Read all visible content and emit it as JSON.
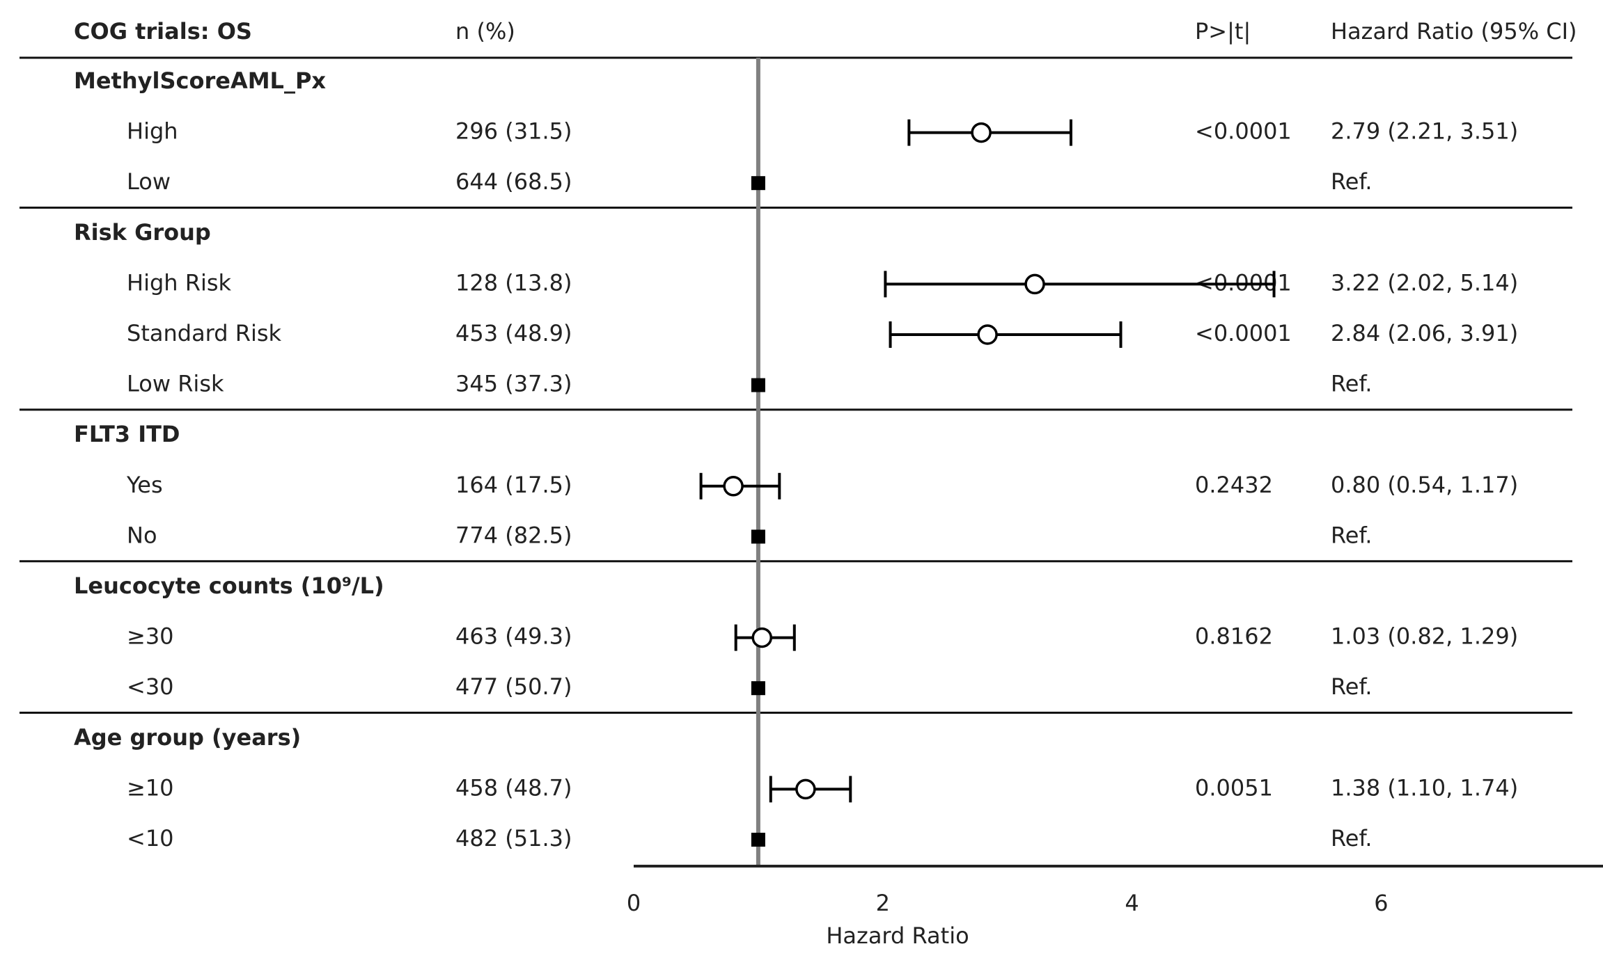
{
  "chart_data": {
    "type": "forest",
    "title": "COG trials: OS",
    "columns": {
      "n": "n (%)",
      "p": "P>|t|",
      "hr": "Hazard Ratio (95% CI)"
    },
    "xlabel": "Hazard Ratio",
    "xlim": [
      0,
      8.5
    ],
    "xticks": [
      "0",
      "2",
      "4",
      "6",
      "8"
    ],
    "reference_line": 1,
    "grid": false,
    "groups": [
      {
        "name": "MethylScoreAML_Px",
        "rows": [
          {
            "label": "High",
            "n": "296 (31.5)",
            "p": "<0.0001",
            "hr_text": "2.79 (2.21, 3.51)",
            "hr": 2.79,
            "lo": 2.21,
            "hi": 3.51
          },
          {
            "label": "Low",
            "n": "644 (68.5)",
            "p": "",
            "hr_text": "Ref.",
            "hr": 1,
            "ref": true
          }
        ]
      },
      {
        "name": "Risk Group",
        "rows": [
          {
            "label": "High Risk",
            "n": "128 (13.8)",
            "p": "<0.0001",
            "hr_text": "3.22 (2.02, 5.14)",
            "hr": 3.22,
            "lo": 2.02,
            "hi": 5.14
          },
          {
            "label": "Standard Risk",
            "n": "453 (48.9)",
            "p": "<0.0001",
            "hr_text": "2.84 (2.06, 3.91)",
            "hr": 2.84,
            "lo": 2.06,
            "hi": 3.91
          },
          {
            "label": "Low Risk",
            "n": "345 (37.3)",
            "p": "",
            "hr_text": "Ref.",
            "hr": 1,
            "ref": true
          }
        ]
      },
      {
        "name": "FLT3 ITD",
        "rows": [
          {
            "label": "Yes",
            "n": "164 (17.5)",
            "p": "0.2432",
            "hr_text": "0.80 (0.54, 1.17)",
            "hr": 0.8,
            "lo": 0.54,
            "hi": 1.17
          },
          {
            "label": "No",
            "n": "774 (82.5)",
            "p": "",
            "hr_text": "Ref.",
            "hr": 1,
            "ref": true
          }
        ]
      },
      {
        "name": "Leucocyte counts (10⁹/L)",
        "rows": [
          {
            "label": "≥30",
            "n": "463 (49.3)",
            "p": "0.8162",
            "hr_text": "1.03 (0.82, 1.29)",
            "hr": 1.03,
            "lo": 0.82,
            "hi": 1.29
          },
          {
            "label": "<30",
            "n": "477 (50.7)",
            "p": "",
            "hr_text": "Ref.",
            "hr": 1,
            "ref": true
          }
        ]
      },
      {
        "name": "Age group (years)",
        "rows": [
          {
            "label": "≥10",
            "n": "458 (48.7)",
            "p": "0.0051",
            "hr_text": "1.38 (1.10, 1.74)",
            "hr": 1.38,
            "lo": 1.1,
            "hi": 1.74
          },
          {
            "label": "<10",
            "n": "482 (51.3)",
            "p": "",
            "hr_text": "Ref.",
            "hr": 1,
            "ref": true
          }
        ]
      }
    ]
  }
}
